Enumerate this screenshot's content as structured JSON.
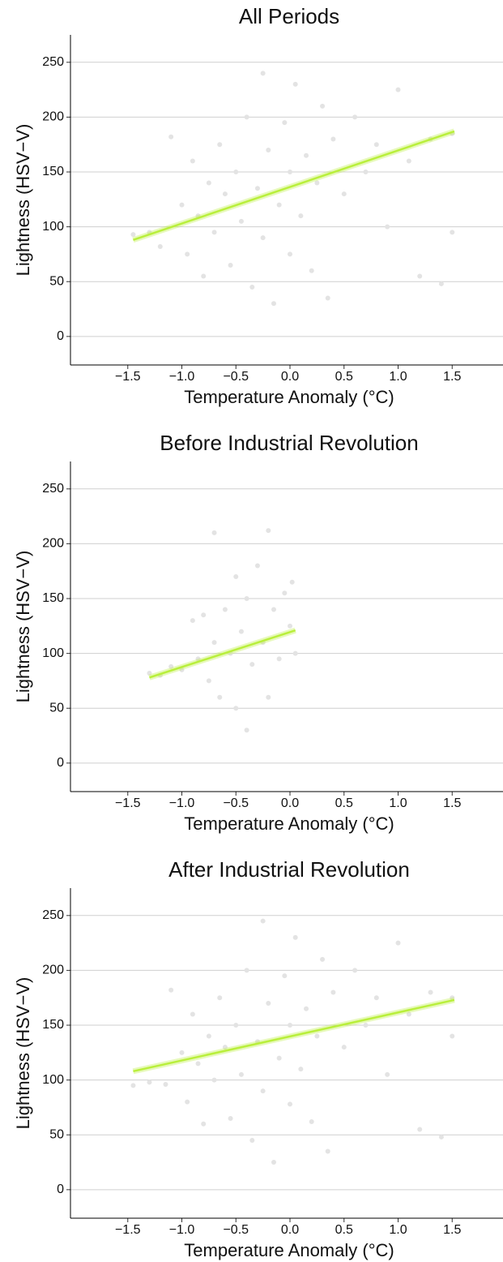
{
  "chart_data": [
    {
      "type": "scatter",
      "title": "All Periods",
      "xlabel": "Temperature Anomaly (°C)",
      "ylabel": "Lightness (HSV−V)",
      "color": "#e3e3e3",
      "grid": true,
      "x": [
        -1.45,
        -1.3,
        -1.2,
        -1.1,
        -1.0,
        -0.95,
        -0.9,
        -0.85,
        -0.8,
        -0.75,
        -0.7,
        -0.65,
        -0.6,
        -0.55,
        -0.5,
        -0.45,
        -0.4,
        -0.35,
        -0.3,
        -0.25,
        -0.25,
        -0.2,
        -0.15,
        -0.1,
        -0.05,
        0,
        0,
        0.05,
        0.1,
        0.15,
        0.2,
        0.25,
        0.3,
        0.35,
        0.4,
        0.5,
        0.6,
        0.7,
        0.8,
        0.9,
        1.0,
        1.1,
        1.2,
        1.3,
        1.4,
        1.5,
        1.5
      ],
      "y": [
        93,
        95,
        82,
        182,
        120,
        75,
        160,
        110,
        55,
        140,
        95,
        175,
        130,
        65,
        150,
        105,
        200,
        45,
        135,
        240,
        90,
        170,
        30,
        120,
        195,
        150,
        75,
        230,
        110,
        165,
        60,
        140,
        210,
        35,
        180,
        130,
        200,
        150,
        175,
        100,
        225,
        160,
        55,
        180,
        48,
        185,
        95
      ],
      "fit": {
        "x": [
          -1.45,
          1.52
        ],
        "y": [
          88,
          187
        ],
        "color": "#b9ef3c"
      },
      "xlim": [
        -2.03,
        1.97
      ],
      "ylim": [
        -26,
        275
      ],
      "xticks": [
        {
          "value": -1.5,
          "label": "−1.5"
        },
        {
          "value": -1.0,
          "label": "−1.0"
        },
        {
          "value": -0.5,
          "label": "−0.5"
        },
        {
          "value": 0,
          "label": "0.0"
        },
        0.5,
        {
          "value": 1.0,
          "label": "1.0"
        },
        1.5
      ],
      "yticks": [
        0,
        50,
        100,
        150,
        200,
        250
      ]
    },
    {
      "type": "scatter",
      "title": "Before Industrial Revolution",
      "xlabel": "Temperature Anomaly (°C)",
      "ylabel": "Lightness (HSV−V)",
      "color": "#e3e3e3",
      "grid": true,
      "x": [
        -1.3,
        -1.2,
        -1.1,
        -1.0,
        -0.9,
        -0.85,
        -0.8,
        -0.75,
        -0.7,
        -0.7,
        -0.65,
        -0.6,
        -0.55,
        -0.5,
        -0.5,
        -0.45,
        -0.4,
        -0.4,
        -0.35,
        -0.3,
        -0.25,
        -0.2,
        -0.2,
        -0.15,
        -0.1,
        -0.05,
        0,
        0.02,
        0.05
      ],
      "y": [
        82,
        80,
        88,
        85,
        130,
        95,
        135,
        75,
        210,
        110,
        60,
        140,
        100,
        170,
        50,
        120,
        30,
        150,
        90,
        180,
        110,
        212,
        60,
        140,
        95,
        155,
        125,
        165,
        100
      ],
      "fit": {
        "x": [
          -1.3,
          0.05
        ],
        "y": [
          78,
          121
        ],
        "color": "#b9ef3c"
      },
      "xlim": [
        -2.03,
        1.97
      ],
      "ylim": [
        -26,
        275
      ],
      "xticks": [
        {
          "value": -1.5,
          "label": "−1.5"
        },
        {
          "value": -1.0,
          "label": "−1.0"
        },
        {
          "value": -0.5,
          "label": "−0.5"
        },
        {
          "value": 0,
          "label": "0.0"
        },
        0.5,
        {
          "value": 1.0,
          "label": "1.0"
        },
        1.5
      ],
      "yticks": [
        0,
        50,
        100,
        150,
        200,
        250
      ]
    },
    {
      "type": "scatter",
      "title": "After Industrial Revolution",
      "xlabel": "Temperature Anomaly (°C)",
      "ylabel": "Lightness (HSV−V)",
      "color": "#e3e3e3",
      "grid": true,
      "x": [
        -1.45,
        -1.3,
        -1.15,
        -1.1,
        -1.0,
        -0.95,
        -0.9,
        -0.85,
        -0.8,
        -0.75,
        -0.7,
        -0.65,
        -0.6,
        -0.55,
        -0.5,
        -0.45,
        -0.4,
        -0.35,
        -0.3,
        -0.25,
        -0.25,
        -0.2,
        -0.15,
        -0.1,
        -0.05,
        0,
        0,
        0.05,
        0.1,
        0.15,
        0.2,
        0.25,
        0.3,
        0.35,
        0.4,
        0.5,
        0.6,
        0.7,
        0.8,
        0.9,
        1.0,
        1.1,
        1.2,
        1.3,
        1.4,
        1.5,
        1.5
      ],
      "y": [
        95,
        98,
        96,
        182,
        125,
        80,
        160,
        115,
        60,
        140,
        100,
        175,
        130,
        65,
        150,
        105,
        200,
        45,
        135,
        245,
        90,
        170,
        25,
        120,
        195,
        150,
        78,
        230,
        110,
        165,
        62,
        140,
        210,
        35,
        180,
        130,
        200,
        150,
        175,
        105,
        225,
        160,
        55,
        180,
        48,
        175,
        140
      ],
      "fit": {
        "x": [
          -1.45,
          1.52
        ],
        "y": [
          108,
          173
        ],
        "color": "#b9ef3c"
      },
      "xlim": [
        -2.03,
        1.97
      ],
      "ylim": [
        -26,
        275
      ],
      "xticks": [
        {
          "value": -1.5,
          "label": "−1.5"
        },
        {
          "value": -1.0,
          "label": "−1.0"
        },
        {
          "value": -0.5,
          "label": "−0.5"
        },
        {
          "value": 0,
          "label": "0.0"
        },
        0.5,
        {
          "value": 1.0,
          "label": "1.0"
        },
        1.5
      ],
      "yticks": [
        0,
        50,
        100,
        150,
        200,
        250
      ]
    }
  ]
}
